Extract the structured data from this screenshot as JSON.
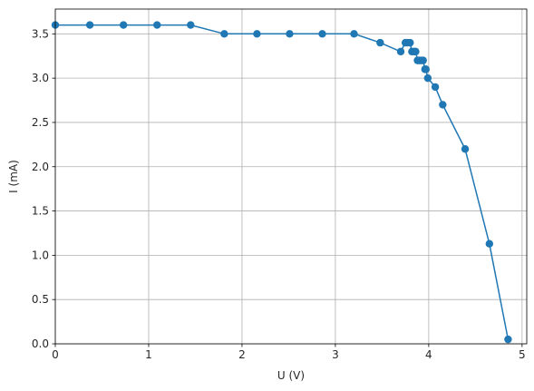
{
  "chart_data": {
    "type": "line",
    "title": "",
    "xlabel": "U (V)",
    "ylabel": "I (mA)",
    "xlim": [
      0,
      5.05
    ],
    "ylim": [
      0,
      3.78
    ],
    "xticks": [
      0,
      1,
      2,
      3,
      4,
      5
    ],
    "yticks": [
      0.0,
      0.5,
      1.0,
      1.5,
      2.0,
      2.5,
      3.0,
      3.5
    ],
    "xtick_labels": [
      "0",
      "1",
      "2",
      "3",
      "4",
      "5"
    ],
    "ytick_labels": [
      "0.0",
      "0.5",
      "1.0",
      "1.5",
      "2.0",
      "2.5",
      "3.0",
      "3.5"
    ],
    "grid": true,
    "marker": "circle",
    "color": "#1f77b4",
    "series": [
      {
        "x": [
          0.0,
          0.37,
          0.73,
          1.09,
          1.45,
          1.81,
          2.16,
          2.51,
          2.86,
          3.2,
          3.48,
          3.7,
          3.75,
          3.77,
          3.8,
          3.82,
          3.84,
          3.86,
          3.88,
          3.9,
          3.92,
          3.94,
          3.96,
          3.97,
          3.99,
          4.07,
          4.15,
          4.39,
          4.65,
          4.85
        ],
        "y": [
          3.6,
          3.6,
          3.6,
          3.6,
          3.6,
          3.5,
          3.5,
          3.5,
          3.5,
          3.5,
          3.4,
          3.3,
          3.4,
          3.4,
          3.4,
          3.3,
          3.3,
          3.3,
          3.2,
          3.2,
          3.2,
          3.2,
          3.1,
          3.1,
          3.0,
          2.9,
          2.7,
          2.2,
          1.13,
          0.05
        ]
      }
    ]
  }
}
